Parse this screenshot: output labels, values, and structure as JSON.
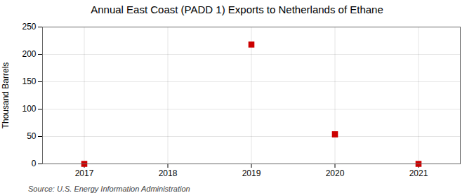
{
  "chart_data": {
    "type": "scatter",
    "title": "Annual East Coast (PADD 1) Exports to Netherlands of Ethane",
    "ylabel": "Thousand Barrels",
    "source": "Source: U.S. Energy Information Administration",
    "x": [
      2017,
      2019,
      2020,
      2021
    ],
    "values": [
      0,
      218,
      54,
      0
    ],
    "color": "#cc0000",
    "marker": "square",
    "xlim": [
      2016.5,
      2021.5
    ],
    "ylim": [
      0,
      250
    ],
    "xticks": [
      2017,
      2018,
      2019,
      2020,
      2021
    ],
    "yticks": [
      0,
      50,
      100,
      150,
      200,
      250
    ],
    "grid": true
  }
}
